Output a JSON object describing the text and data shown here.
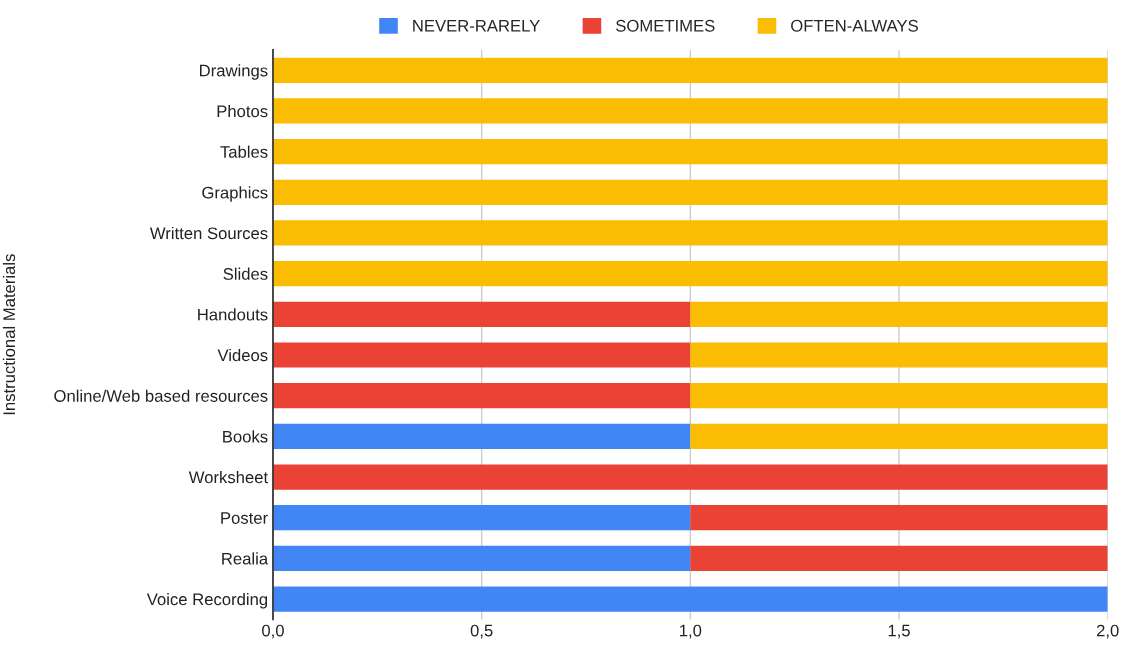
{
  "chart_data": {
    "type": "bar",
    "orientation": "horizontal",
    "stacked": true,
    "ylabel": "Instructional Materials",
    "categories": [
      "Drawings",
      "Photos",
      "Tables",
      "Graphics",
      "Written Sources",
      "Slides",
      "Handouts",
      "Videos",
      "Online/Web based resources",
      "Books",
      "Worksheet",
      "Poster",
      "Realia",
      "Voice Recording"
    ],
    "series": [
      {
        "name": "NEVER-RARELY",
        "color": "#4285f4",
        "values": [
          0,
          0,
          0,
          0,
          0,
          0,
          0,
          0,
          0,
          1,
          0,
          1,
          1,
          2
        ]
      },
      {
        "name": "SOMETIMES",
        "color": "#ea4335",
        "values": [
          0,
          0,
          0,
          0,
          0,
          0,
          1,
          1,
          1,
          0,
          2,
          1,
          1,
          0
        ]
      },
      {
        "name": "OFTEN-ALWAYS",
        "color": "#fbbc04",
        "values": [
          2,
          2,
          2,
          2,
          2,
          2,
          1,
          1,
          1,
          1,
          0,
          0,
          0,
          0
        ]
      }
    ],
    "xlim": [
      0,
      2
    ],
    "xticks": [
      {
        "value": 0,
        "label": "0,0"
      },
      {
        "value": 0.5,
        "label": "0,5"
      },
      {
        "value": 1,
        "label": "1,0"
      },
      {
        "value": 1.5,
        "label": "1,5"
      },
      {
        "value": 2,
        "label": "2,0"
      }
    ],
    "grid": "x",
    "legend": "top"
  }
}
